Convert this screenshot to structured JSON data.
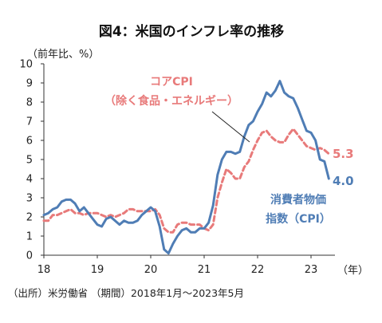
{
  "chart_data": {
    "type": "line",
    "title": "図4：米国のインフレ率の推移",
    "ylabel": "（前年比、%）",
    "xunit": "（年）",
    "source": "（出所）米労働省 （期間）2018年1月〜2023年5月",
    "ylim": [
      0,
      10
    ],
    "yticks": [
      "0",
      "1",
      "2",
      "3",
      "4",
      "5",
      "6",
      "7",
      "8",
      "9",
      "10"
    ],
    "xticks": [
      {
        "label": "18",
        "year": 2018
      },
      {
        "label": "19",
        "year": 2019
      },
      {
        "label": "20",
        "year": 2020
      },
      {
        "label": "21",
        "year": 2021
      },
      {
        "label": "22",
        "year": 2022
      },
      {
        "label": "23",
        "year": 2023
      }
    ],
    "start": "2018-01",
    "end": "2023-05",
    "grid": false,
    "series": [
      {
        "name": "消費者物価指数（CPI）",
        "label_lines": [
          "消費者物価",
          "指数（CPI）"
        ],
        "end_label": "4.0",
        "color": "#4f7db5",
        "style": "solid",
        "values": [
          2.1,
          2.2,
          2.4,
          2.5,
          2.8,
          2.9,
          2.9,
          2.7,
          2.3,
          2.5,
          2.2,
          1.9,
          1.6,
          1.5,
          1.9,
          2.0,
          1.8,
          1.6,
          1.8,
          1.7,
          1.7,
          1.8,
          2.1,
          2.3,
          2.5,
          2.3,
          1.5,
          0.3,
          0.1,
          0.6,
          1.0,
          1.3,
          1.4,
          1.2,
          1.2,
          1.4,
          1.4,
          1.7,
          2.6,
          4.2,
          5.0,
          5.4,
          5.4,
          5.3,
          5.4,
          6.2,
          6.8,
          7.0,
          7.5,
          7.9,
          8.5,
          8.3,
          8.6,
          9.1,
          8.5,
          8.3,
          8.2,
          7.7,
          7.1,
          6.5,
          6.4,
          6.0,
          5.0,
          4.9,
          4.0
        ]
      },
      {
        "name": "コアCPI（除く食品・エネルギー）",
        "label_lines": [
          "コアCPI",
          "（除く食品・エネルギー）"
        ],
        "end_label": "5.3",
        "color": "#e87a7a",
        "style": "dashed",
        "values": [
          1.8,
          1.8,
          2.1,
          2.1,
          2.2,
          2.3,
          2.4,
          2.2,
          2.2,
          2.1,
          2.2,
          2.2,
          2.2,
          2.1,
          2.0,
          2.1,
          2.0,
          2.1,
          2.2,
          2.4,
          2.4,
          2.3,
          2.3,
          2.3,
          2.3,
          2.4,
          2.1,
          1.4,
          1.2,
          1.2,
          1.6,
          1.7,
          1.7,
          1.6,
          1.6,
          1.6,
          1.4,
          1.3,
          1.6,
          3.0,
          3.8,
          4.5,
          4.3,
          4.0,
          4.0,
          4.6,
          4.9,
          5.5,
          6.0,
          6.4,
          6.5,
          6.2,
          6.0,
          5.9,
          5.9,
          6.3,
          6.6,
          6.3,
          6.0,
          5.7,
          5.6,
          5.5,
          5.6,
          5.5,
          5.3
        ]
      }
    ]
  }
}
